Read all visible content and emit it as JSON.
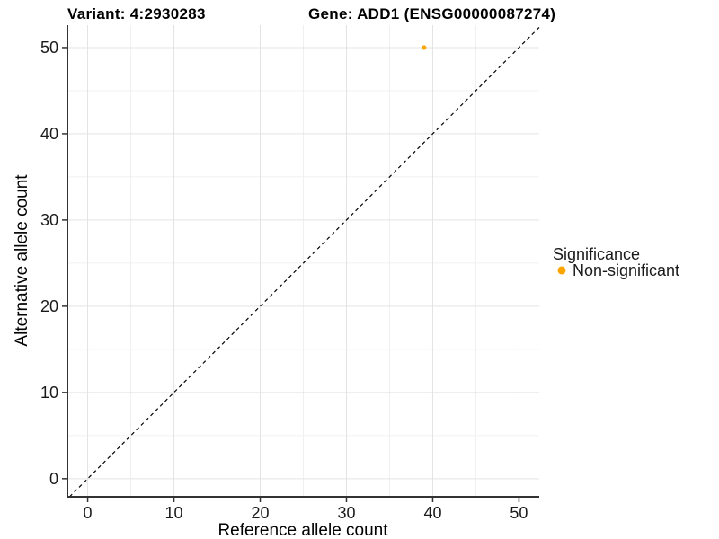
{
  "header": {
    "variant_title": "Variant: 4:2930283",
    "gene_title": "Gene: ADD1 (ENSG00000087274)"
  },
  "chart_data": {
    "type": "scatter",
    "xlabel": "Reference allele count",
    "ylabel": "Alternative allele count",
    "xlim": [
      -2.35,
      52.35
    ],
    "ylim": [
      -2.1,
      52.6
    ],
    "x_ticks": [
      0,
      10,
      20,
      30,
      40,
      50
    ],
    "y_ticks": [
      0,
      10,
      20,
      30,
      40,
      50
    ],
    "x_minor_ticks": [
      5,
      15,
      25,
      35,
      45
    ],
    "y_minor_ticks": [
      5,
      15,
      25,
      35,
      45
    ],
    "grid": true,
    "identity_line": {
      "slope": 1,
      "intercept": 0,
      "style": "dashed",
      "color": "#000000"
    },
    "series": [
      {
        "name": "Non-significant",
        "color": "#FFA500",
        "points": [
          {
            "x": 39,
            "y": 50
          }
        ]
      }
    ],
    "legend": {
      "title": "Significance",
      "position": "right",
      "entries": [
        {
          "label": "Non-significant",
          "color": "#FFA500"
        }
      ]
    }
  },
  "colors": {
    "background": "#FFFFFF",
    "grid_major": "#E3E3E3",
    "grid_minor": "#F0F0F0",
    "axis_line": "#333333",
    "tick_mark": "#333333",
    "title_text": "#000000",
    "tick_text": "#1A1A1A",
    "point": "#FFA500"
  }
}
